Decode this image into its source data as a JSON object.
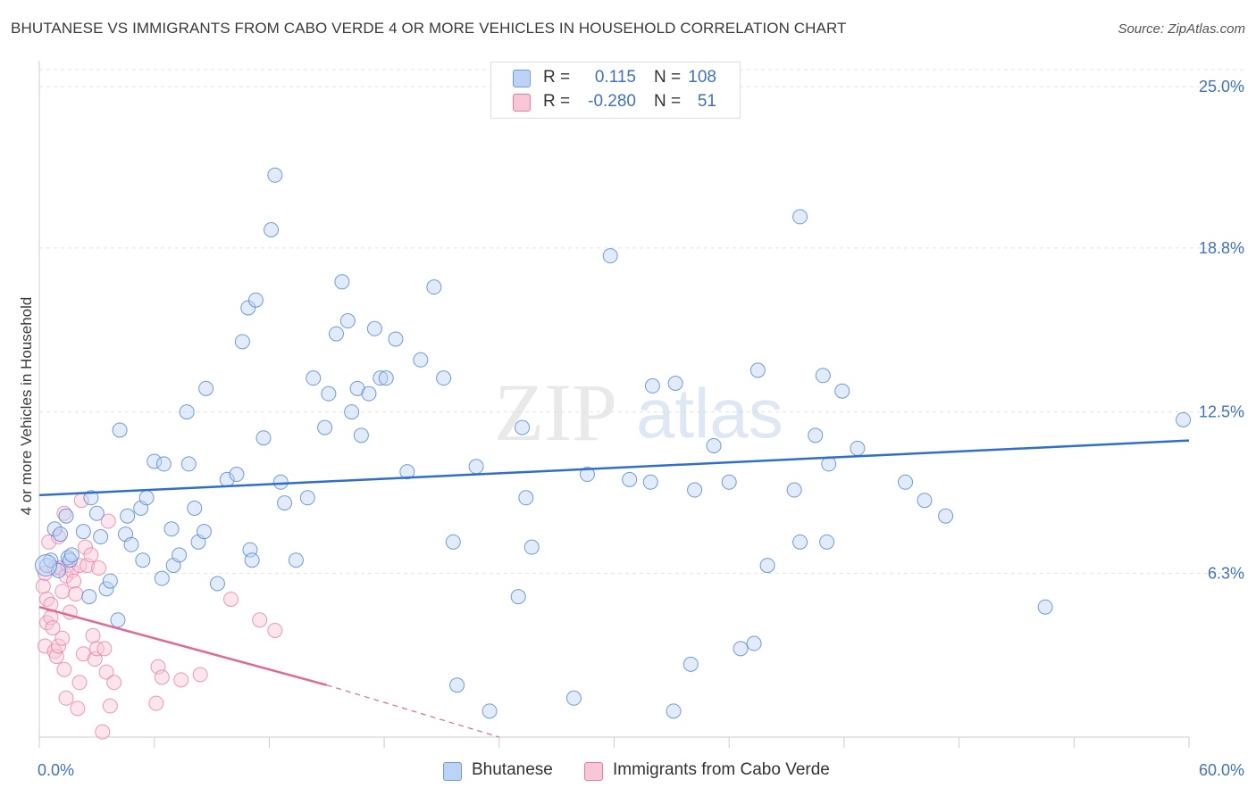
{
  "title": "BHUTANESE VS IMMIGRANTS FROM CABO VERDE 4 OR MORE VEHICLES IN HOUSEHOLD CORRELATION CHART",
  "source": "Source: ZipAtlas.com",
  "watermark": {
    "zip": "ZIP",
    "atlas": "atlas"
  },
  "legend": [
    {
      "r_label": "R =",
      "r_value": "0.115",
      "n_label": "N =",
      "n_value": "108",
      "color": "#6d9be0",
      "fill": "#b8d0f3"
    },
    {
      "r_label": "R =",
      "r_value": "-0.280",
      "n_label": "N =",
      "n_value": "51",
      "color": "#ea7aa0",
      "fill": "#f7c4d5"
    }
  ],
  "bottom_legend": [
    "Bhutanese",
    "Immigrants from Cabo Verde"
  ],
  "chart_data": {
    "type": "scatter",
    "title": "BHUTANESE VS IMMIGRANTS FROM CABO VERDE 4 OR MORE VEHICLES IN HOUSEHOLD CORRELATION CHART",
    "xlabel": "",
    "ylabel": "4 or more Vehicles in Household",
    "xlim": [
      0,
      60
    ],
    "ylim": [
      0,
      26
    ],
    "x_tick_labels": [
      "0.0%",
      "60.0%"
    ],
    "y_ticks": [
      6.3,
      12.5,
      18.8,
      25.0
    ],
    "y_tick_labels": [
      "6.3%",
      "12.5%",
      "18.8%",
      "25.0%"
    ],
    "grid": true,
    "legend_position": "top-center",
    "colors": {
      "blue": "#4f86d6",
      "blue_fill": "#bcd3f5",
      "pink": "#e9799f",
      "pink_fill": "#f8c6d7",
      "trend_blue": "#2f6fcb",
      "trend_pink": "#e06a95"
    },
    "series": [
      {
        "name": "Bhutanese",
        "trend": {
          "x0": 0,
          "y0": 9.3,
          "x1": 60,
          "y1": 11.4
        },
        "points": [
          [
            0.4,
            6.6
          ],
          [
            0.6,
            6.8
          ],
          [
            0.8,
            8.0
          ],
          [
            1.0,
            6.4
          ],
          [
            1.1,
            7.8
          ],
          [
            1.4,
            8.5
          ],
          [
            1.5,
            6.9
          ],
          [
            1.6,
            6.8
          ],
          [
            1.7,
            7.0
          ],
          [
            2.3,
            7.9
          ],
          [
            2.6,
            5.4
          ],
          [
            2.7,
            9.2
          ],
          [
            3.0,
            8.6
          ],
          [
            3.2,
            7.7
          ],
          [
            3.5,
            5.7
          ],
          [
            3.7,
            6.0
          ],
          [
            4.1,
            4.5
          ],
          [
            4.2,
            11.8
          ],
          [
            4.5,
            7.8
          ],
          [
            4.6,
            8.5
          ],
          [
            4.8,
            7.4
          ],
          [
            5.3,
            8.8
          ],
          [
            5.4,
            6.8
          ],
          [
            5.6,
            9.2
          ],
          [
            6.0,
            10.6
          ],
          [
            6.4,
            6.1
          ],
          [
            6.5,
            10.5
          ],
          [
            6.9,
            8.0
          ],
          [
            7.0,
            6.6
          ],
          [
            7.3,
            7.0
          ],
          [
            7.7,
            12.5
          ],
          [
            7.8,
            10.5
          ],
          [
            8.1,
            8.8
          ],
          [
            8.3,
            7.5
          ],
          [
            8.6,
            7.9
          ],
          [
            8.7,
            13.4
          ],
          [
            9.3,
            5.9
          ],
          [
            9.8,
            9.9
          ],
          [
            10.3,
            10.1
          ],
          [
            10.6,
            15.2
          ],
          [
            10.9,
            16.5
          ],
          [
            11.0,
            7.2
          ],
          [
            11.1,
            6.8
          ],
          [
            11.3,
            16.8
          ],
          [
            11.7,
            11.5
          ],
          [
            12.1,
            19.5
          ],
          [
            12.3,
            21.6
          ],
          [
            12.6,
            9.8
          ],
          [
            12.8,
            9.0
          ],
          [
            13.4,
            6.8
          ],
          [
            14.0,
            9.2
          ],
          [
            14.3,
            13.8
          ],
          [
            14.9,
            11.9
          ],
          [
            15.1,
            13.2
          ],
          [
            15.5,
            15.5
          ],
          [
            15.8,
            17.5
          ],
          [
            16.1,
            16.0
          ],
          [
            16.3,
            12.5
          ],
          [
            16.6,
            13.4
          ],
          [
            16.8,
            11.6
          ],
          [
            17.2,
            13.2
          ],
          [
            17.5,
            15.7
          ],
          [
            17.8,
            13.8
          ],
          [
            18.1,
            13.8
          ],
          [
            18.6,
            15.3
          ],
          [
            19.2,
            10.2
          ],
          [
            19.9,
            14.5
          ],
          [
            20.6,
            17.3
          ],
          [
            21.1,
            13.8
          ],
          [
            21.6,
            7.5
          ],
          [
            21.8,
            2.0
          ],
          [
            22.8,
            10.4
          ],
          [
            23.5,
            1.0
          ],
          [
            25.0,
            5.4
          ],
          [
            25.2,
            11.9
          ],
          [
            25.4,
            9.2
          ],
          [
            25.7,
            7.3
          ],
          [
            27.9,
            1.5
          ],
          [
            28.6,
            10.1
          ],
          [
            29.8,
            18.5
          ],
          [
            30.8,
            9.9
          ],
          [
            31.9,
            9.8
          ],
          [
            32.0,
            13.5
          ],
          [
            33.1,
            1.0
          ],
          [
            33.2,
            13.6
          ],
          [
            34.0,
            2.8
          ],
          [
            34.2,
            9.5
          ],
          [
            35.2,
            11.2
          ],
          [
            36.0,
            9.8
          ],
          [
            36.6,
            3.4
          ],
          [
            37.3,
            3.6
          ],
          [
            37.5,
            14.1
          ],
          [
            38.0,
            6.6
          ],
          [
            39.4,
            9.5
          ],
          [
            39.7,
            20.0
          ],
          [
            39.7,
            7.5
          ],
          [
            40.5,
            11.6
          ],
          [
            40.9,
            13.9
          ],
          [
            41.1,
            7.5
          ],
          [
            41.2,
            10.5
          ],
          [
            41.9,
            13.3
          ],
          [
            42.7,
            11.1
          ],
          [
            45.2,
            9.8
          ],
          [
            46.2,
            9.1
          ],
          [
            47.3,
            8.5
          ],
          [
            52.5,
            5.0
          ],
          [
            59.7,
            12.2
          ]
        ]
      },
      {
        "name": "Immigrants from Cabo Verde",
        "trend": {
          "x0": 0,
          "y0": 5.0,
          "x1": 15,
          "y1": 2.0,
          "dash_x1": 24,
          "dash_y1": 0.0
        },
        "points": [
          [
            0.2,
            5.8
          ],
          [
            0.3,
            6.3
          ],
          [
            0.3,
            3.5
          ],
          [
            0.4,
            5.3
          ],
          [
            0.4,
            4.4
          ],
          [
            0.5,
            7.5
          ],
          [
            0.6,
            5.1
          ],
          [
            0.6,
            4.6
          ],
          [
            0.7,
            4.2
          ],
          [
            0.8,
            3.3
          ],
          [
            0.8,
            6.5
          ],
          [
            0.9,
            3.1
          ],
          [
            1.0,
            7.7
          ],
          [
            1.0,
            3.5
          ],
          [
            1.1,
            6.5
          ],
          [
            1.2,
            5.6
          ],
          [
            1.2,
            3.8
          ],
          [
            1.3,
            8.6
          ],
          [
            1.3,
            2.6
          ],
          [
            1.4,
            6.2
          ],
          [
            1.4,
            1.5
          ],
          [
            1.5,
            6.6
          ],
          [
            1.6,
            4.8
          ],
          [
            1.7,
            6.4
          ],
          [
            1.8,
            6.0
          ],
          [
            1.9,
            5.5
          ],
          [
            2.0,
            1.1
          ],
          [
            2.1,
            6.6
          ],
          [
            2.1,
            2.1
          ],
          [
            2.2,
            9.1
          ],
          [
            2.3,
            3.2
          ],
          [
            2.4,
            7.3
          ],
          [
            2.5,
            6.6
          ],
          [
            2.7,
            7.0
          ],
          [
            2.8,
            3.9
          ],
          [
            2.9,
            3.0
          ],
          [
            3.0,
            3.4
          ],
          [
            3.1,
            6.5
          ],
          [
            3.3,
            0.2
          ],
          [
            3.4,
            3.4
          ],
          [
            3.5,
            2.5
          ],
          [
            3.6,
            8.3
          ],
          [
            3.7,
            1.2
          ],
          [
            3.9,
            2.1
          ],
          [
            6.1,
            1.3
          ],
          [
            6.2,
            2.7
          ],
          [
            6.4,
            2.3
          ],
          [
            7.4,
            2.2
          ],
          [
            8.4,
            2.4
          ],
          [
            10.0,
            5.3
          ],
          [
            11.5,
            4.5
          ],
          [
            12.3,
            4.1
          ]
        ]
      }
    ]
  }
}
